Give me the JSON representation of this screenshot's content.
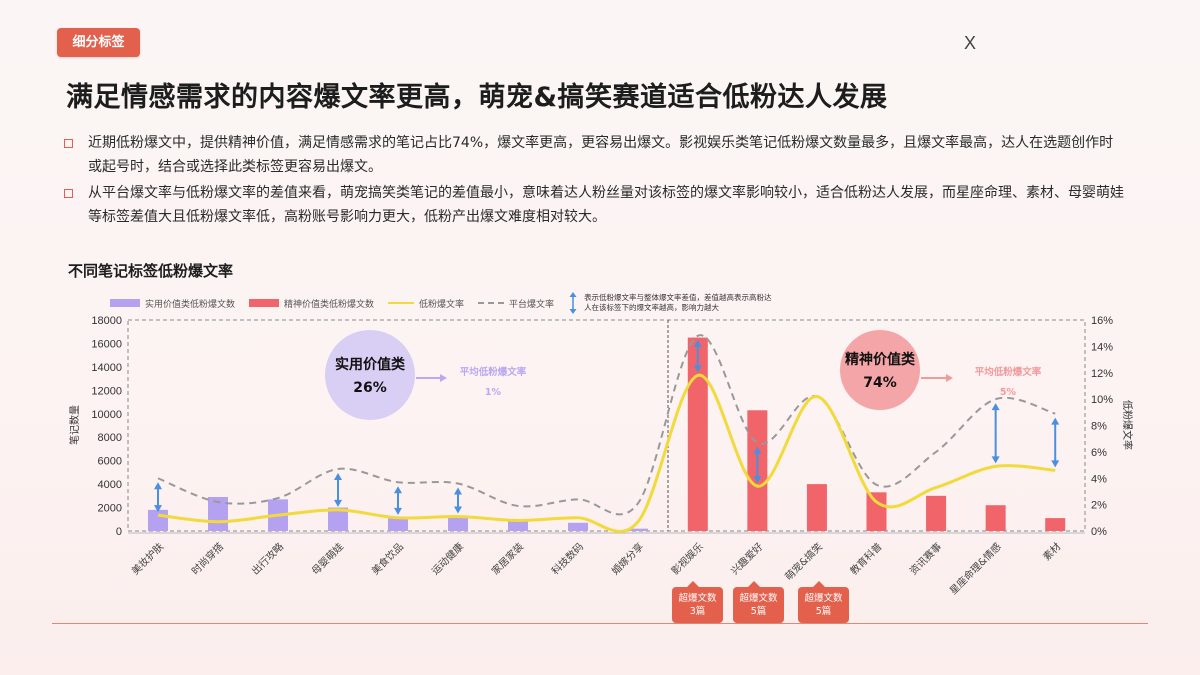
{
  "header": {
    "tag": "细分标签",
    "close_label": "X",
    "title": "满足情感需求的内容爆文率更高，萌宠&搞笑赛道适合低粉达人发展"
  },
  "bullets": [
    {
      "text": "近期低粉爆文中，提供精神价值，满足情感需求的笔记占比74%，爆文率更高，更容易出爆文。影视娱乐类笔记低粉爆文数量最多，且爆文率最高，达人在选题创作时或起号时，结合或选择此类标签更容易出爆文。"
    },
    {
      "text": "从平台爆文率与低粉爆文率的差值来看，萌宠搞笑类笔记的差值最小，意味着达人粉丝量对该标签的爆文率影响较小，适合低粉达人发展，而星座命理、素材、母婴萌娃等标签差值大且低粉爆文率低，高粉账号影响力更大，低粉产出爆文难度相对较大。"
    }
  ],
  "chart": {
    "title": "不同笔记标签低粉爆文率",
    "legend": {
      "practical_bar": "实用价值类低粉爆文数",
      "emotional_bar": "精神价值类低粉爆文数",
      "low_fan_line": "低粉爆文率",
      "platform_line": "平台爆文率",
      "arrow_note": "表示低粉爆文率与整体爆文率差值，差值越高表示高粉达人在该标签下的爆文率越高，影响力越大"
    },
    "left_axis_label": "笔记数量",
    "right_axis_label": "低粉爆文率",
    "left_ticks": [
      "0",
      "2000",
      "4000",
      "6000",
      "8000",
      "10000",
      "12000",
      "14000",
      "16000",
      "18000"
    ],
    "right_ticks": [
      "0%",
      "2%",
      "4%",
      "6%",
      "8%",
      "10%",
      "12%",
      "14%",
      "16%"
    ],
    "practical_bubble": {
      "name": "实用价值类",
      "pct": "26%",
      "avg_label": "平均低粉爆文率",
      "avg_value": "1%"
    },
    "emotional_bubble": {
      "name": "精神价值类",
      "pct": "74%",
      "avg_label": "平均低粉爆文率",
      "avg_value": "5%"
    },
    "callouts": [
      {
        "line1": "超爆文数",
        "line2": "3篇"
      },
      {
        "line1": "超爆文数",
        "line2": "5篇"
      },
      {
        "line1": "超爆文数",
        "line2": "5篇"
      }
    ]
  },
  "colors": {
    "accent": "#e2604c",
    "practical": "#b4a2f0",
    "emotional": "#f0646a",
    "low_fan_line": "#f2d93c",
    "platform_line": "#999999",
    "arrow": "#4a8fe0",
    "bubble_practical": "#d9cff5",
    "bubble_emotional": "#f4a5a7"
  },
  "chart_data": {
    "type": "bar",
    "title": "不同笔记标签低粉爆文率",
    "xlabel": "",
    "ylabel": "笔记数量",
    "y2label": "低粉爆文率",
    "ylim": [
      0,
      18000
    ],
    "y2lim": [
      0,
      16
    ],
    "categories": [
      "美妆护肤",
      "时尚穿搭",
      "出行攻略",
      "母婴萌娃",
      "美食饮品",
      "运动健康",
      "家居家装",
      "科技数码",
      "婚嫁分享",
      "影视娱乐",
      "兴趣爱好",
      "萌宠&搞笑",
      "教育科普",
      "资讯赛事",
      "星座命理&情感",
      "素材"
    ],
    "groups": [
      "实用价值类",
      "实用价值类",
      "实用价值类",
      "实用价值类",
      "实用价值类",
      "实用价值类",
      "实用价值类",
      "实用价值类",
      "实用价值类",
      "精神价值类",
      "精神价值类",
      "精神价值类",
      "精神价值类",
      "精神价值类",
      "精神价值类",
      "精神价值类"
    ],
    "series": [
      {
        "name": "实用价值类低粉爆文数",
        "type": "bar",
        "axis": "left",
        "values": [
          1800,
          2900,
          2700,
          2000,
          1200,
          1300,
          900,
          700,
          200,
          null,
          null,
          null,
          null,
          null,
          null,
          null
        ]
      },
      {
        "name": "精神价值类低粉爆文数",
        "type": "bar",
        "axis": "left",
        "values": [
          null,
          null,
          null,
          null,
          null,
          null,
          null,
          null,
          null,
          16500,
          10300,
          4000,
          3300,
          3000,
          2200,
          1100
        ]
      },
      {
        "name": "低粉爆文率",
        "type": "line",
        "axis": "right",
        "unit": "%",
        "values": [
          1.2,
          0.7,
          1.2,
          1.6,
          1.0,
          1.1,
          0.8,
          1.0,
          0.7,
          11.8,
          3.4,
          10.2,
          2.2,
          3.3,
          4.9,
          4.6
        ]
      },
      {
        "name": "平台爆文率",
        "type": "line",
        "style": "dashed",
        "axis": "right",
        "unit": "%",
        "values": [
          4.0,
          2.2,
          2.5,
          4.7,
          3.7,
          3.6,
          1.9,
          2.4,
          2.1,
          14.8,
          6.7,
          10.2,
          3.5,
          6.0,
          10.0,
          8.9
        ]
      }
    ],
    "diff_arrows": [
      "美妆护肤",
      "母婴萌娃",
      "美食饮品",
      "运动健康",
      "影视娱乐",
      "兴趣爱好",
      "星座命理&情感",
      "素材"
    ],
    "annotations": [
      {
        "text": "实用价值类 26%",
        "target": "left group"
      },
      {
        "text": "平均低粉爆文率 1%",
        "target": "left group"
      },
      {
        "text": "精神价值类 74%",
        "target": "right group"
      },
      {
        "text": "平均低粉爆文率 5%",
        "target": "right group"
      },
      {
        "text": "超爆文数 3篇",
        "target": "影视娱乐"
      },
      {
        "text": "超爆文数 5篇",
        "target": "兴趣爱好"
      },
      {
        "text": "超爆文数 5篇",
        "target": "萌宠&搞笑"
      }
    ],
    "grid": false,
    "legend_position": "top"
  }
}
